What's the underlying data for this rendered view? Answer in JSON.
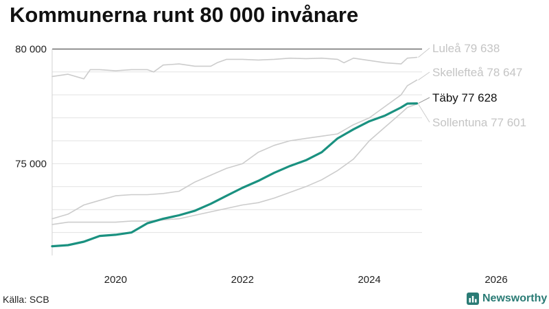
{
  "title": "Kommunerna runt 80 000 invånare",
  "source": "Källa: SCB",
  "brand": {
    "name": "Newsworthy",
    "icon": "newsworthy-logo-icon",
    "color": "#2a7b75"
  },
  "chart_data": {
    "type": "line",
    "title": "Kommunerna runt 80 000 invånare",
    "xlabel": "",
    "ylabel": "",
    "xlim": [
      2019.0,
      2026.4
    ],
    "ylim": [
      71000,
      80400
    ],
    "yticks": [
      {
        "value": 75000,
        "label": "75 000"
      },
      {
        "value": 80000,
        "label": "80 000"
      }
    ],
    "xticks": [
      {
        "value": 2020,
        "label": "2020"
      },
      {
        "value": 2022,
        "label": "2022"
      },
      {
        "value": 2024,
        "label": "2024"
      },
      {
        "value": 2026,
        "label": "2026"
      }
    ],
    "grid": true,
    "legend": "direct labels at line ends (right)",
    "series": [
      {
        "name": "Luleå",
        "end_label": "Luleå 79 638",
        "color": "#cccccc",
        "highlight": false,
        "x": [
          2019.0,
          2019.25,
          2019.5,
          2019.6,
          2019.75,
          2020.0,
          2020.25,
          2020.5,
          2020.6,
          2020.75,
          2021.0,
          2021.25,
          2021.5,
          2021.6,
          2021.75,
          2022.0,
          2022.25,
          2022.5,
          2022.75,
          2023.0,
          2023.25,
          2023.5,
          2023.6,
          2023.75,
          2024.0,
          2024.25,
          2024.5,
          2024.6,
          2024.75
        ],
        "y": [
          78800,
          78900,
          78700,
          79100,
          79100,
          79050,
          79100,
          79100,
          79000,
          79300,
          79350,
          79250,
          79250,
          79400,
          79550,
          79550,
          79520,
          79550,
          79600,
          79580,
          79600,
          79550,
          79400,
          79600,
          79500,
          79400,
          79350,
          79600,
          79638
        ]
      },
      {
        "name": "Skellefteå",
        "end_label": "Skellefteå 78 647",
        "color": "#cccccc",
        "highlight": false,
        "x": [
          2019.0,
          2019.25,
          2019.5,
          2019.75,
          2020.0,
          2020.25,
          2020.5,
          2020.75,
          2021.0,
          2021.25,
          2021.5,
          2021.75,
          2022.0,
          2022.25,
          2022.5,
          2022.75,
          2023.0,
          2023.25,
          2023.5,
          2023.75,
          2024.0,
          2024.25,
          2024.5,
          2024.6,
          2024.75
        ],
        "y": [
          72600,
          72800,
          73200,
          73400,
          73600,
          73650,
          73650,
          73700,
          73800,
          74200,
          74500,
          74800,
          75000,
          75500,
          75800,
          76000,
          76100,
          76200,
          76300,
          76700,
          77000,
          77500,
          78000,
          78400,
          78647
        ]
      },
      {
        "name": "Sollentuna",
        "end_label": "Sollentuna 77 601",
        "color": "#cccccc",
        "highlight": false,
        "x": [
          2019.0,
          2019.25,
          2019.5,
          2019.75,
          2020.0,
          2020.25,
          2020.5,
          2020.75,
          2021.0,
          2021.25,
          2021.5,
          2021.75,
          2022.0,
          2022.25,
          2022.5,
          2022.75,
          2023.0,
          2023.25,
          2023.5,
          2023.75,
          2024.0,
          2024.25,
          2024.5,
          2024.6,
          2024.75
        ],
        "y": [
          72350,
          72450,
          72450,
          72450,
          72450,
          72500,
          72500,
          72550,
          72600,
          72750,
          72900,
          73050,
          73200,
          73300,
          73500,
          73750,
          74000,
          74300,
          74700,
          75200,
          76000,
          76600,
          77200,
          77450,
          77601
        ]
      },
      {
        "name": "Täby",
        "end_label": "Täby 77 628",
        "color": "#1a9180",
        "highlight": true,
        "x": [
          2019.0,
          2019.25,
          2019.5,
          2019.6,
          2019.75,
          2020.0,
          2020.25,
          2020.5,
          2020.75,
          2021.0,
          2021.25,
          2021.5,
          2021.75,
          2022.0,
          2022.25,
          2022.5,
          2022.75,
          2023.0,
          2023.25,
          2023.5,
          2023.75,
          2024.0,
          2024.25,
          2024.5,
          2024.6,
          2024.75
        ],
        "y": [
          71400,
          71450,
          71600,
          71700,
          71850,
          71900,
          72000,
          72400,
          72600,
          72750,
          72950,
          73250,
          73600,
          73950,
          74250,
          74600,
          74900,
          75150,
          75500,
          76100,
          76500,
          76850,
          77100,
          77450,
          77620,
          77628
        ]
      }
    ]
  }
}
